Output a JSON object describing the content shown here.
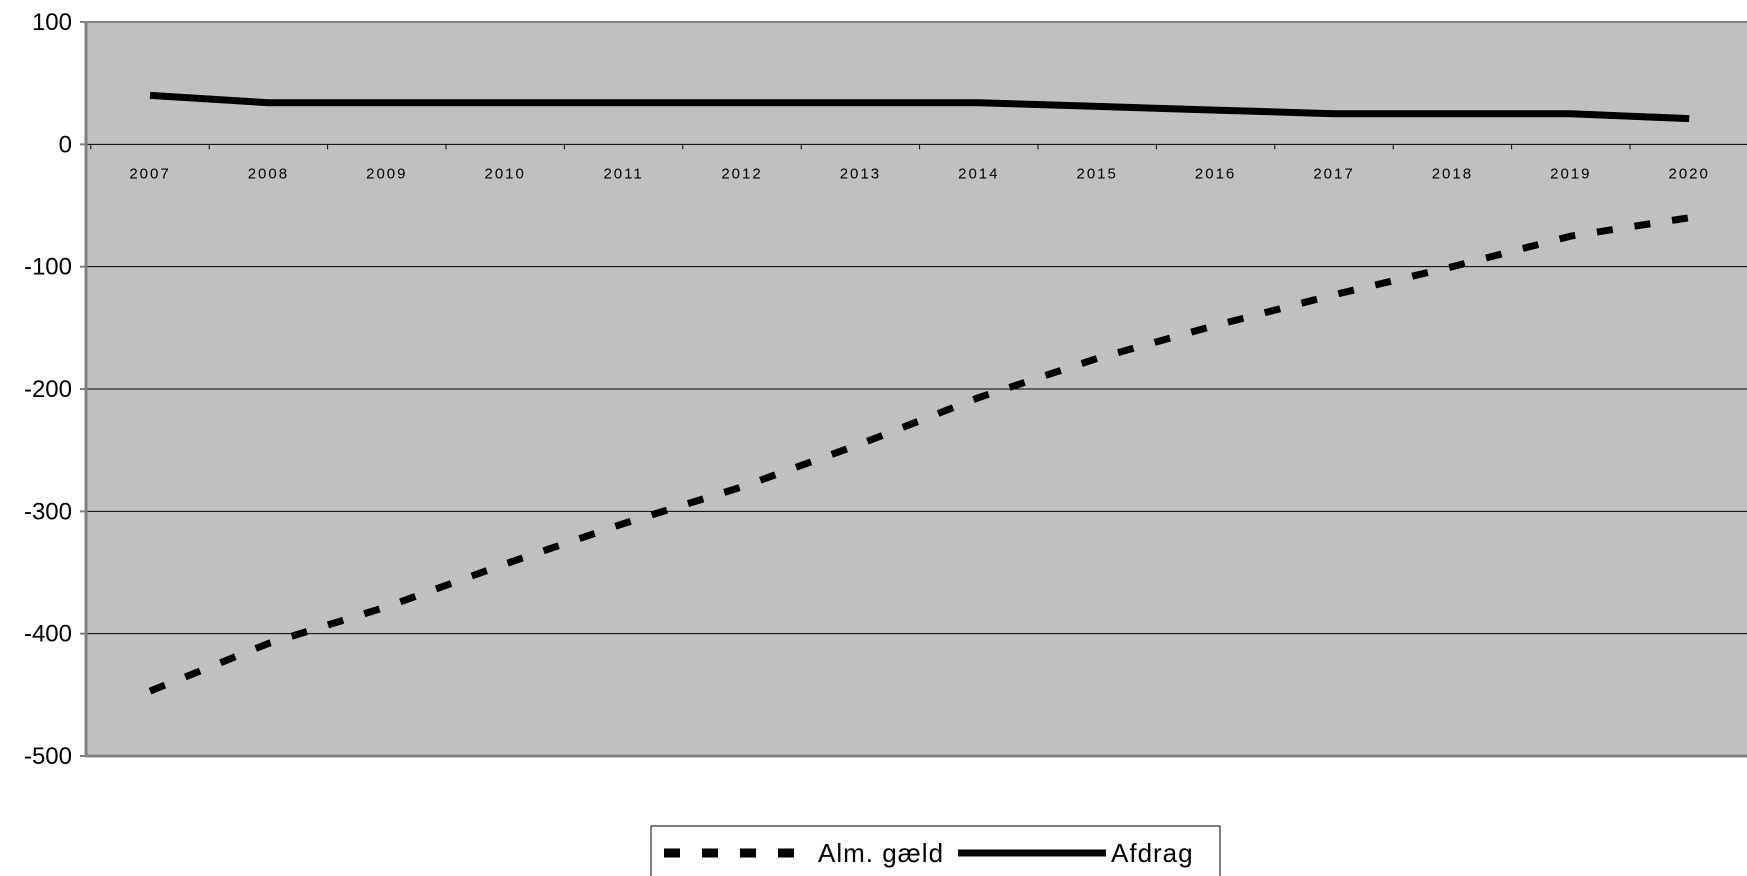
{
  "chart_data": {
    "type": "line",
    "title": "",
    "xlabel": "",
    "ylabel": "",
    "categories": [
      "2007",
      "2008",
      "2009",
      "2010",
      "2011",
      "2012",
      "2013",
      "2014",
      "2015",
      "2016",
      "2017",
      "2018",
      "2019",
      "2020"
    ],
    "ylim": [
      -500,
      100
    ],
    "yticks": [
      100,
      0,
      -100,
      -200,
      -300,
      -400,
      -500
    ],
    "ytick_labels": [
      "100",
      "0",
      "-100",
      "-200",
      "-300",
      "-400",
      "-500"
    ],
    "grid": "horizontal",
    "legend_position": "bottom",
    "series": [
      {
        "name": "Alm. gæld",
        "style": "dashed",
        "color": "#000000",
        "values": [
          -447,
          -408,
          -378,
          -343,
          -310,
          -280,
          -245,
          -207,
          -175,
          -148,
          -123,
          -100,
          -75,
          -60
        ]
      },
      {
        "name": "Afdrag",
        "style": "solid",
        "color": "#000000",
        "values": [
          40,
          34,
          34,
          34,
          34,
          34,
          34,
          34,
          31,
          28,
          25,
          25,
          25,
          21
        ]
      }
    ],
    "colors": {
      "plot_background": "#c0c0c0",
      "gridline": "#000000",
      "axis": "#808080"
    }
  }
}
